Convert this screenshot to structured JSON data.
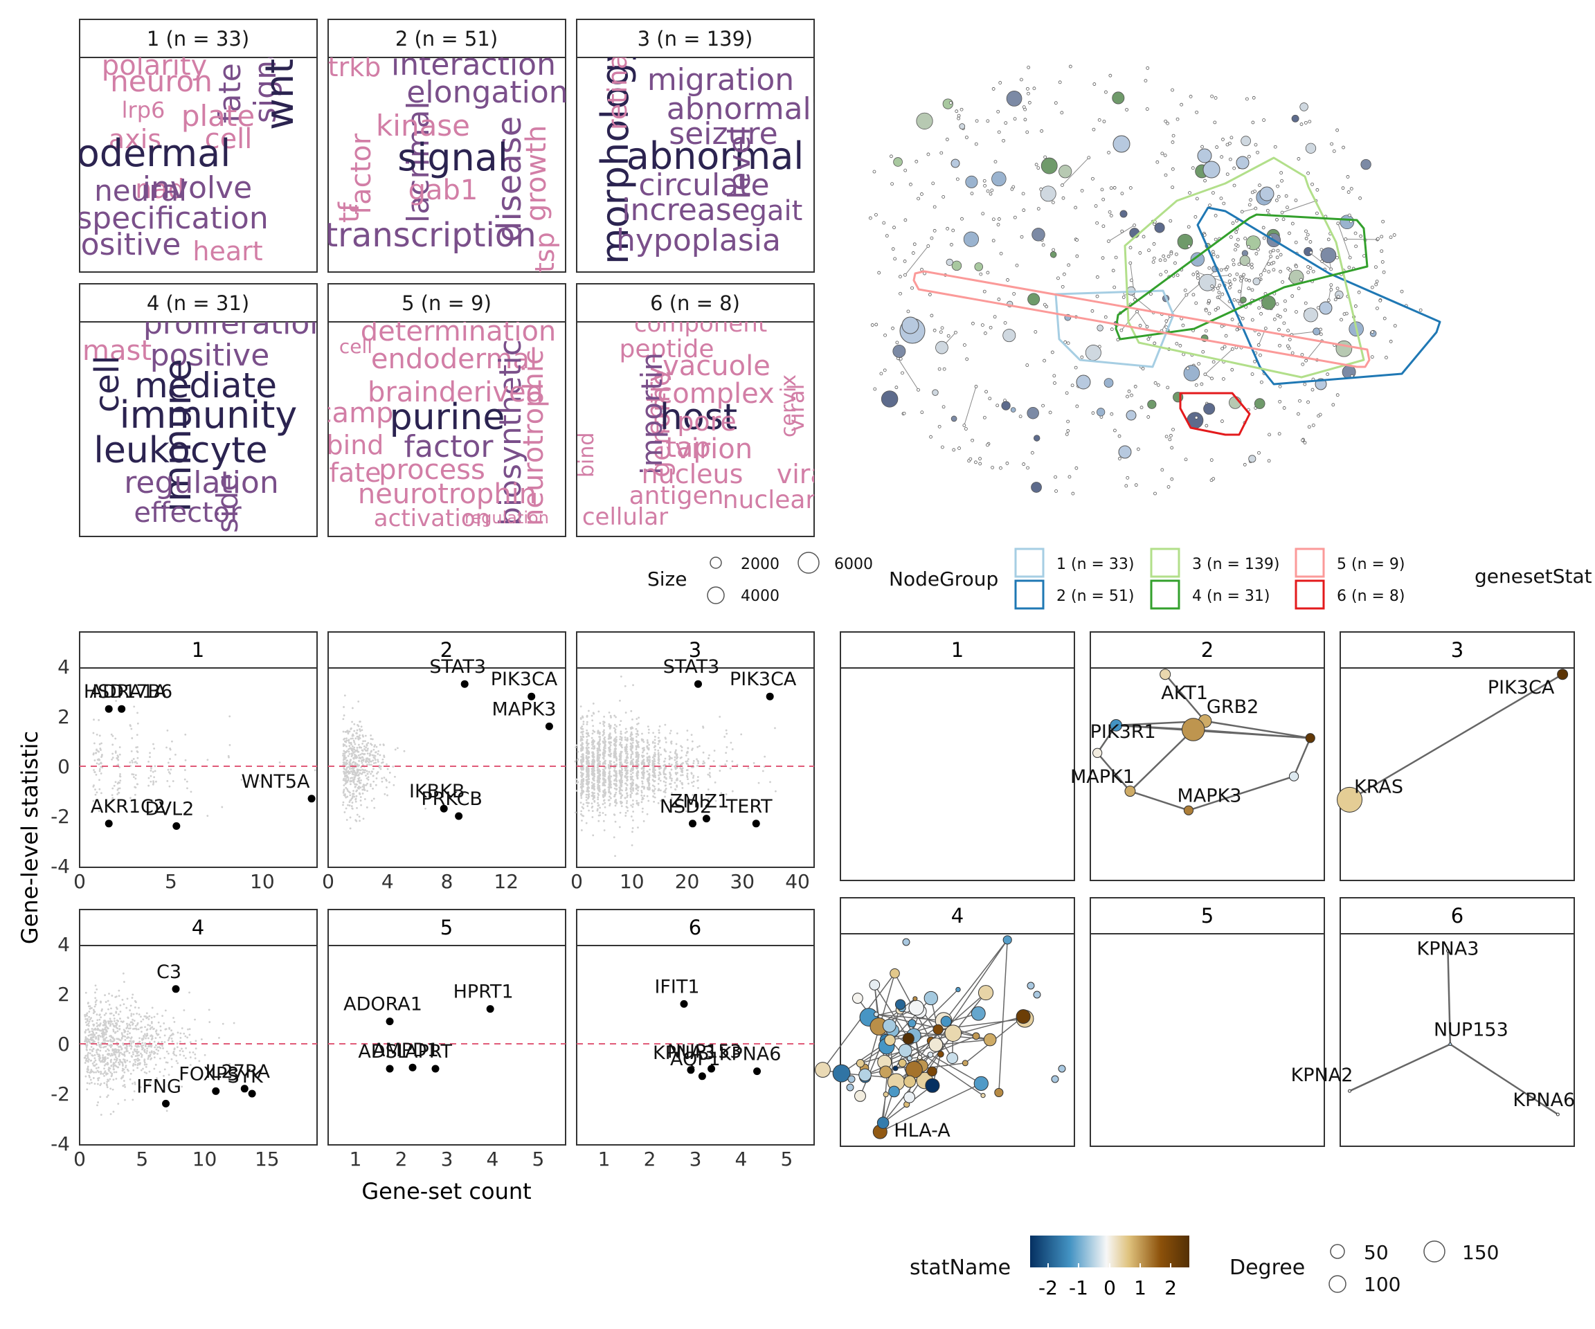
{
  "colors": {
    "wordcloud_dark": "#2b2350",
    "wordcloud_mid": "#7a4f8a",
    "wordcloud_light": "#d27ea6",
    "strip_fill": "#ffffff",
    "zero_line": "#e05a78",
    "scatter_bg": "#cfcfcf",
    "highlight_point": "#000000",
    "network_edge": "#555555",
    "group_colors": [
      "#a6cee3",
      "#1f78b4",
      "#b2df8a",
      "#33a02c",
      "#fb9a99",
      "#e31a1c"
    ],
    "stat_gradient": [
      "#053061",
      "#4393c3",
      "#f7f7f7",
      "#dfc27d",
      "#8c510a",
      "#543005"
    ]
  },
  "wordclouds": [
    {
      "title": "1 (n = 33)",
      "words": [
        {
          "t": "polarity",
          "c": "l",
          "s": 40
        },
        {
          "t": "neuron",
          "c": "l",
          "s": 42
        },
        {
          "t": "lrp6",
          "c": "l",
          "s": 32
        },
        {
          "t": "fate",
          "c": "m",
          "s": 44,
          "r": true
        },
        {
          "t": "signal",
          "c": "m",
          "s": 44,
          "r": true
        },
        {
          "t": "wnt",
          "c": "d",
          "s": 56,
          "r": true
        },
        {
          "t": "plate",
          "c": "l",
          "s": 42
        },
        {
          "t": "axis",
          "c": "l",
          "s": 38
        },
        {
          "t": "cell",
          "c": "l",
          "s": 40
        },
        {
          "t": "mesodermal",
          "c": "d",
          "s": 54
        },
        {
          "t": "nad",
          "c": "l",
          "s": 38
        },
        {
          "t": "involve",
          "c": "m",
          "s": 44
        },
        {
          "t": "neural",
          "c": "m",
          "s": 42
        },
        {
          "t": "specification",
          "c": "m",
          "s": 44
        },
        {
          "t": "positive",
          "c": "m",
          "s": 44
        },
        {
          "t": "heart",
          "c": "l",
          "s": 38
        }
      ]
    },
    {
      "title": "2 (n = 51)",
      "words": [
        {
          "t": "trkb",
          "c": "l",
          "s": 38
        },
        {
          "t": "interaction",
          "c": "m",
          "s": 44
        },
        {
          "t": "elongation",
          "c": "m",
          "s": 44
        },
        {
          "t": "factor",
          "c": "l",
          "s": 40,
          "r": true
        },
        {
          "t": "lacrimal",
          "c": "m",
          "s": 44,
          "r": true
        },
        {
          "t": "kinase",
          "c": "l",
          "s": 42
        },
        {
          "t": "disease",
          "c": "m",
          "s": 48,
          "r": true
        },
        {
          "t": "growth",
          "c": "l",
          "s": 40,
          "r": true
        },
        {
          "t": "signal",
          "c": "d",
          "s": 54
        },
        {
          "t": "tf",
          "c": "l",
          "s": 40,
          "r": true
        },
        {
          "t": "gab1",
          "c": "l",
          "s": 40
        },
        {
          "t": "transcription",
          "c": "m",
          "s": 48
        },
        {
          "t": "tsp",
          "c": "l",
          "s": 38,
          "r": true
        }
      ]
    },
    {
      "title": "3 (n = 139)",
      "words": [
        {
          "t": "morphology",
          "c": "d",
          "s": 54,
          "r": true
        },
        {
          "t": "retinal",
          "c": "l",
          "s": 38,
          "r": true
        },
        {
          "t": "migration",
          "c": "m",
          "s": 44
        },
        {
          "t": "abnormality",
          "c": "m",
          "s": 44
        },
        {
          "t": "seizure",
          "c": "m",
          "s": 44
        },
        {
          "t": "abnormal",
          "c": "d",
          "s": 54
        },
        {
          "t": "level",
          "c": "m",
          "s": 44,
          "r": true
        },
        {
          "t": "circulate",
          "c": "m",
          "s": 44
        },
        {
          "t": "increase",
          "c": "m",
          "s": 44
        },
        {
          "t": "gait",
          "c": "m",
          "s": 40
        },
        {
          "t": "hypoplasia",
          "c": "m",
          "s": 44
        }
      ]
    },
    {
      "title": "4 (n = 31)",
      "words": [
        {
          "t": "proliferation",
          "c": "m",
          "s": 44
        },
        {
          "t": "mast",
          "c": "l",
          "s": 40
        },
        {
          "t": "positive",
          "c": "m",
          "s": 44
        },
        {
          "t": "cell",
          "c": "d",
          "s": 48,
          "r": true
        },
        {
          "t": "mediate",
          "c": "d",
          "s": 50
        },
        {
          "t": "immune",
          "c": "d",
          "s": 54,
          "r": true
        },
        {
          "t": "immunity",
          "c": "d",
          "s": 54
        },
        {
          "t": "leukocyte",
          "c": "d",
          "s": 52
        },
        {
          "t": "regulation",
          "c": "m",
          "s": 44
        },
        {
          "t": "side",
          "c": "m",
          "s": 42,
          "r": true
        },
        {
          "t": "effector",
          "c": "m",
          "s": 40
        }
      ]
    },
    {
      "title": "5 (n = 9)",
      "words": [
        {
          "t": "determination",
          "c": "l",
          "s": 40
        },
        {
          "t": "cell",
          "c": "l",
          "s": 28
        },
        {
          "t": "endodermal",
          "c": "l",
          "s": 40
        },
        {
          "t": "biosynthetic",
          "c": "m",
          "s": 44,
          "r": true
        },
        {
          "t": "neurotrophic",
          "c": "l",
          "s": 40,
          "r": true
        },
        {
          "t": "brainderived",
          "c": "l",
          "s": 40
        },
        {
          "t": "camp",
          "c": "l",
          "s": 40
        },
        {
          "t": "purine",
          "c": "d",
          "s": 52
        },
        {
          "t": "bind",
          "c": "l",
          "s": 38
        },
        {
          "t": "factor",
          "c": "m",
          "s": 44
        },
        {
          "t": "fate",
          "c": "l",
          "s": 38
        },
        {
          "t": "process",
          "c": "l",
          "s": 40
        },
        {
          "t": "neurotrophin",
          "c": "l",
          "s": 40
        },
        {
          "t": "activation",
          "c": "l",
          "s": 34
        },
        {
          "t": "regulation",
          "c": "l",
          "s": 24
        }
      ]
    },
    {
      "title": "6 (n = 8)",
      "words": [
        {
          "t": "component",
          "c": "l",
          "s": 34
        },
        {
          "t": "peptide",
          "c": "l",
          "s": 36
        },
        {
          "t": "vacuole",
          "c": "l",
          "s": 40
        },
        {
          "t": "entry",
          "c": "l",
          "s": 38,
          "r": true
        },
        {
          "t": "genome",
          "c": "l",
          "s": 38,
          "r": true
        },
        {
          "t": "importin",
          "c": "m",
          "s": 42,
          "r": true
        },
        {
          "t": "complex",
          "c": "l",
          "s": 40
        },
        {
          "t": "viral",
          "c": "l",
          "s": 32,
          "r": true
        },
        {
          "t": "host",
          "c": "d",
          "s": 52
        },
        {
          "t": "pore",
          "c": "l",
          "s": 38
        },
        {
          "t": "cervix",
          "c": "l",
          "s": 30,
          "r": true
        },
        {
          "t": "tap",
          "c": "l",
          "s": 40
        },
        {
          "t": "virion",
          "c": "l",
          "s": 40
        },
        {
          "t": "bind",
          "c": "l",
          "s": 30,
          "r": true
        },
        {
          "t": "nucleus",
          "c": "l",
          "s": 38
        },
        {
          "t": "viral",
          "c": "l",
          "s": 38
        },
        {
          "t": "antigen",
          "c": "l",
          "s": 36
        },
        {
          "t": "nuclear",
          "c": "l",
          "s": 36
        },
        {
          "t": "cellular",
          "c": "l",
          "s": 34
        }
      ]
    }
  ],
  "legend_top": {
    "size_title": "Size",
    "size_values": [
      "2000",
      "4000",
      "6000"
    ],
    "group_title": "NodeGroup",
    "group_labels": [
      "1 (n = 33)",
      "2 (n = 51)",
      "3 (n = 139)",
      "4 (n = 31)",
      "5 (n = 9)",
      "6 (n = 8)"
    ],
    "stat_title": "genesetStat"
  },
  "legend_bottom": {
    "stat_title": "statName",
    "stat_ticks": [
      "-2",
      "-1",
      "0",
      "1",
      "2"
    ],
    "degree_title": "Degree",
    "degree_values": [
      "50",
      "100",
      "150"
    ]
  },
  "scatter_axes": {
    "ylabel": "Gene-level statistic",
    "xlabel": "Gene-set count",
    "yticks": [
      "4",
      "2",
      "0",
      "-2",
      "-4"
    ]
  },
  "chart_data": [
    {
      "type": "scatter",
      "panel": "1",
      "xlim": [
        0,
        13
      ],
      "ylim": [
        -4,
        4
      ],
      "xticks": [
        0,
        5,
        10
      ],
      "max_bg_x": 13,
      "points": [
        {
          "label": "ADRA1A",
          "x": 1.6,
          "y": 2.3
        },
        {
          "label": "HSD17B6",
          "x": 2.3,
          "y": 2.3
        },
        {
          "label": "WNT5A",
          "x": 12.7,
          "y": -1.3
        },
        {
          "label": "AKR1C2",
          "x": 1.6,
          "y": -2.3
        },
        {
          "label": "DVL2",
          "x": 5.3,
          "y": -2.4
        }
      ]
    },
    {
      "type": "scatter",
      "panel": "2",
      "xlim": [
        0,
        16
      ],
      "ylim": [
        -4,
        4
      ],
      "xticks": [
        0,
        4,
        8,
        12
      ],
      "max_bg_x": 8,
      "points": [
        {
          "label": "STAT3",
          "x": 9.2,
          "y": 3.3
        },
        {
          "label": "PIK3CA",
          "x": 13.7,
          "y": 2.8
        },
        {
          "label": "MAPK3",
          "x": 14.9,
          "y": 1.6
        },
        {
          "label": "IKBKB",
          "x": 7.8,
          "y": -1.7
        },
        {
          "label": "PRKCB",
          "x": 8.8,
          "y": -2.0
        }
      ]
    },
    {
      "type": "scatter",
      "panel": "3",
      "xlim": [
        0,
        43
      ],
      "ylim": [
        -4,
        4
      ],
      "xticks": [
        0,
        10,
        20,
        30,
        40
      ],
      "max_bg_x": 40,
      "points": [
        {
          "label": "STAT3",
          "x": 22,
          "y": 3.3
        },
        {
          "label": "PIK3CA",
          "x": 35,
          "y": 2.8
        },
        {
          "label": "ZMIZ1",
          "x": 23.5,
          "y": -2.1
        },
        {
          "label": "NSD2",
          "x": 21,
          "y": -2.3
        },
        {
          "label": "TERT",
          "x": 32.5,
          "y": -2.3
        }
      ]
    },
    {
      "type": "scatter",
      "panel": "4",
      "xlim": [
        0,
        19
      ],
      "ylim": [
        -4,
        4
      ],
      "xticks": [
        0,
        5,
        10,
        15
      ],
      "max_bg_x": 15,
      "points": [
        {
          "label": "C3",
          "x": 7.7,
          "y": 2.2
        },
        {
          "label": "FOXP3",
          "x": 10.9,
          "y": -1.9
        },
        {
          "label": "IL27RA",
          "x": 13.2,
          "y": -1.8
        },
        {
          "label": "SYK",
          "x": 13.8,
          "y": -2.0
        },
        {
          "label": "IFNG",
          "x": 6.9,
          "y": -2.4
        }
      ]
    },
    {
      "type": "scatter",
      "panel": "5",
      "xlim": [
        0.4,
        5.6
      ],
      "ylim": [
        -4,
        4
      ],
      "xticks": [
        1,
        2,
        3,
        4,
        5
      ],
      "max_bg_x": 0,
      "points": [
        {
          "label": "ADORA1",
          "x": 1.75,
          "y": 0.9
        },
        {
          "label": "HPRT1",
          "x": 3.95,
          "y": 1.4
        },
        {
          "label": "ADSL",
          "x": 1.75,
          "y": -1.0
        },
        {
          "label": "AMPD1",
          "x": 2.25,
          "y": -0.95
        },
        {
          "label": "APRT",
          "x": 2.75,
          "y": -1.0
        }
      ]
    },
    {
      "type": "scatter",
      "panel": "6",
      "xlim": [
        0.4,
        5.6
      ],
      "ylim": [
        -4,
        4
      ],
      "xticks": [
        1,
        2,
        3,
        4,
        5
      ],
      "max_bg_x": 0,
      "points": [
        {
          "label": "IFIT1",
          "x": 2.75,
          "y": 1.6
        },
        {
          "label": "NUP153",
          "x": 3.35,
          "y": -1.0
        },
        {
          "label": "KPNA6",
          "x": 4.35,
          "y": -1.1
        },
        {
          "label": "KPNA3",
          "x": 2.9,
          "y": -1.05
        },
        {
          "label": "AQP1",
          "x": 3.15,
          "y": -1.3
        }
      ]
    }
  ],
  "networks": [
    {
      "title": "1",
      "nodes": [],
      "edges": []
    },
    {
      "title": "2",
      "nodes": [
        {
          "label": "AKT1",
          "stat": 0.6,
          "deg": 40
        },
        {
          "label": "GRB2",
          "stat": 1.2,
          "deg": 60
        },
        {
          "label": "PIK3R1",
          "stat": -1.4,
          "deg": 50
        },
        {
          "label": "",
          "stat": 1.4,
          "deg": 140
        },
        {
          "label": "",
          "stat": 2.6,
          "deg": 30
        },
        {
          "label": "",
          "stat": 0.2,
          "deg": 30
        },
        {
          "label": "MAPK1",
          "stat": 1.2,
          "deg": 40
        },
        {
          "label": "",
          "stat": -0.2,
          "deg": 30
        },
        {
          "label": "MAPK3",
          "stat": 1.6,
          "deg": 30
        }
      ],
      "edges": [
        [
          0,
          1
        ],
        [
          1,
          2
        ],
        [
          1,
          3
        ],
        [
          1,
          4
        ],
        [
          2,
          3
        ],
        [
          2,
          5
        ],
        [
          3,
          4
        ],
        [
          4,
          7
        ],
        [
          7,
          8
        ],
        [
          8,
          6
        ],
        [
          6,
          5
        ],
        [
          2,
          4
        ],
        [
          3,
          6
        ]
      ]
    },
    {
      "title": "3",
      "nodes": [
        {
          "label": "PIK3CA",
          "stat": 2.7,
          "deg": 40
        },
        {
          "label": "KRAS",
          "stat": 0.8,
          "deg": 160
        }
      ],
      "edges": [
        [
          0,
          1
        ]
      ]
    },
    {
      "title": "4",
      "nodes": [
        {
          "label": "HLA-A",
          "stat": -0.3,
          "deg": 60
        }
      ],
      "edges": []
    },
    {
      "title": "5",
      "nodes": [],
      "edges": []
    },
    {
      "title": "6",
      "nodes": [
        {
          "label": "KPNA3",
          "stat": 0,
          "deg": 10
        },
        {
          "label": "NUP153",
          "stat": -0.6,
          "deg": 10
        },
        {
          "label": "KPNA2",
          "stat": 0,
          "deg": 10
        },
        {
          "label": "KPNA6",
          "stat": 0,
          "deg": 10
        }
      ],
      "edges": [
        [
          0,
          1
        ],
        [
          1,
          2
        ],
        [
          1,
          3
        ]
      ]
    }
  ]
}
